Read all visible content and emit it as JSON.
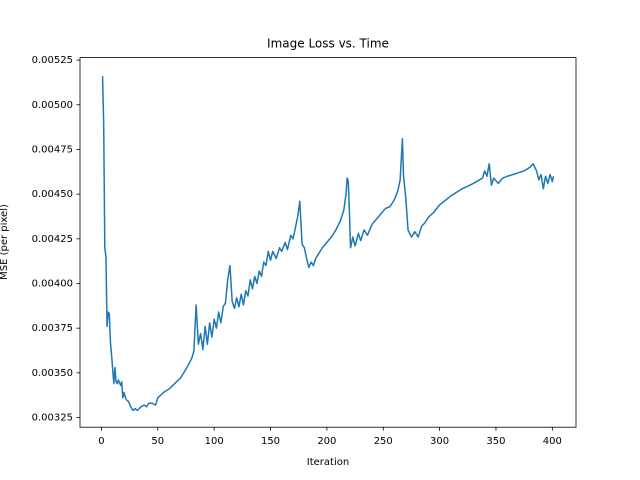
{
  "chart_data": {
    "type": "line",
    "title": "Image Loss vs. Time",
    "x_label": "Iteration",
    "y_label": "MSE (per pixel)",
    "x": [
      1,
      2,
      3,
      4,
      5,
      6,
      7,
      8,
      9,
      10,
      11,
      12,
      13,
      14,
      15,
      17,
      18,
      19,
      20,
      22,
      24,
      26,
      28,
      30,
      32,
      35,
      38,
      40,
      42,
      45,
      48,
      50,
      55,
      60,
      65,
      70,
      75,
      80,
      82,
      84,
      86,
      88,
      90,
      92,
      94,
      96,
      98,
      100,
      102,
      104,
      106,
      108,
      110,
      112,
      114,
      116,
      118,
      120,
      122,
      124,
      126,
      128,
      130,
      132,
      134,
      136,
      138,
      140,
      142,
      144,
      146,
      148,
      150,
      152,
      155,
      158,
      160,
      163,
      165,
      168,
      170,
      172,
      174,
      176,
      177,
      178,
      180,
      182,
      184,
      186,
      188,
      190,
      193,
      196,
      200,
      204,
      208,
      212,
      215,
      217,
      218,
      219,
      220,
      221,
      223,
      225,
      228,
      230,
      233,
      236,
      240,
      244,
      248,
      252,
      256,
      260,
      263,
      265,
      267,
      268,
      270,
      272,
      275,
      278,
      281,
      284,
      287,
      290,
      295,
      300,
      310,
      320,
      330,
      338,
      340,
      342,
      344,
      346,
      348,
      352,
      356,
      360,
      365,
      370,
      375,
      380,
      383,
      386,
      388,
      390,
      392,
      394,
      396,
      398,
      400,
      401
    ],
    "series": [
      {
        "name": "MSE",
        "color": "#1f77b4",
        "values": [
          0.00516,
          0.0049,
          0.0042,
          0.00415,
          0.00376,
          0.00384,
          0.00383,
          0.00367,
          0.0036,
          0.00352,
          0.00344,
          0.00353,
          0.00345,
          0.00344,
          0.00346,
          0.00343,
          0.00345,
          0.00336,
          0.00339,
          0.00335,
          0.00334,
          0.00331,
          0.00329,
          0.0033,
          0.00329,
          0.00331,
          0.00332,
          0.00331,
          0.00333,
          0.00333,
          0.00332,
          0.00336,
          0.00339,
          0.00341,
          0.00344,
          0.00347,
          0.00352,
          0.00358,
          0.00362,
          0.00388,
          0.00366,
          0.00372,
          0.00363,
          0.00376,
          0.00366,
          0.00378,
          0.0037,
          0.0038,
          0.00375,
          0.00384,
          0.00378,
          0.00387,
          0.00389,
          0.00402,
          0.0041,
          0.0039,
          0.00386,
          0.00392,
          0.00387,
          0.00394,
          0.00388,
          0.00396,
          0.00393,
          0.00402,
          0.00397,
          0.00404,
          0.004,
          0.00407,
          0.00404,
          0.00412,
          0.0041,
          0.00418,
          0.00413,
          0.00418,
          0.00414,
          0.0042,
          0.00418,
          0.00423,
          0.00419,
          0.00427,
          0.00425,
          0.00431,
          0.00437,
          0.00446,
          0.00434,
          0.00422,
          0.0042,
          0.00414,
          0.00409,
          0.00412,
          0.0041,
          0.00414,
          0.00417,
          0.0042,
          0.00423,
          0.00426,
          0.0043,
          0.00435,
          0.00441,
          0.0045,
          0.00459,
          0.00457,
          0.0044,
          0.0042,
          0.00426,
          0.00421,
          0.00428,
          0.00424,
          0.0043,
          0.00427,
          0.00433,
          0.00436,
          0.00439,
          0.00442,
          0.00443,
          0.00447,
          0.00452,
          0.00458,
          0.00481,
          0.0046,
          0.00448,
          0.0043,
          0.00426,
          0.00429,
          0.00426,
          0.00432,
          0.00434,
          0.00437,
          0.0044,
          0.00444,
          0.00449,
          0.00453,
          0.00456,
          0.00459,
          0.00463,
          0.0046,
          0.00467,
          0.00455,
          0.00459,
          0.00456,
          0.00459,
          0.0046,
          0.00461,
          0.00462,
          0.00463,
          0.00465,
          0.00467,
          0.00463,
          0.00458,
          0.00461,
          0.00453,
          0.0046,
          0.00456,
          0.00461,
          0.00457,
          0.0046
        ]
      }
    ],
    "xlim": [
      -19,
      421
    ],
    "xticks": [
      0,
      50,
      100,
      150,
      200,
      250,
      300,
      350,
      400
    ],
    "ylim": [
      0.003196,
      0.005264
    ],
    "yticks": [
      0.00325,
      {
        "value": 0.0035,
        "label": "0.00350"
      },
      0.00375,
      {
        "value": 0.004,
        "label": "0.00400"
      },
      0.00425,
      {
        "value": 0.0045,
        "label": "0.00450"
      },
      0.00475,
      {
        "value": 0.005,
        "label": "0.00500"
      },
      0.00525
    ],
    "grid": false
  }
}
